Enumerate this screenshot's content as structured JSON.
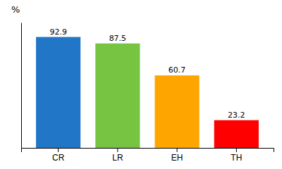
{
  "chart_data": {
    "type": "bar",
    "categories": [
      "CR",
      "LR",
      "EH",
      "TH"
    ],
    "values": [
      92.9,
      87.5,
      60.7,
      23.2
    ],
    "colors": [
      "#2176C7",
      "#76C442",
      "#FFA500",
      "#FF0000"
    ],
    "ylabel": "%",
    "ylim": [
      0,
      105
    ],
    "data_labels": true,
    "tick_labels": "x",
    "grid": false
  }
}
